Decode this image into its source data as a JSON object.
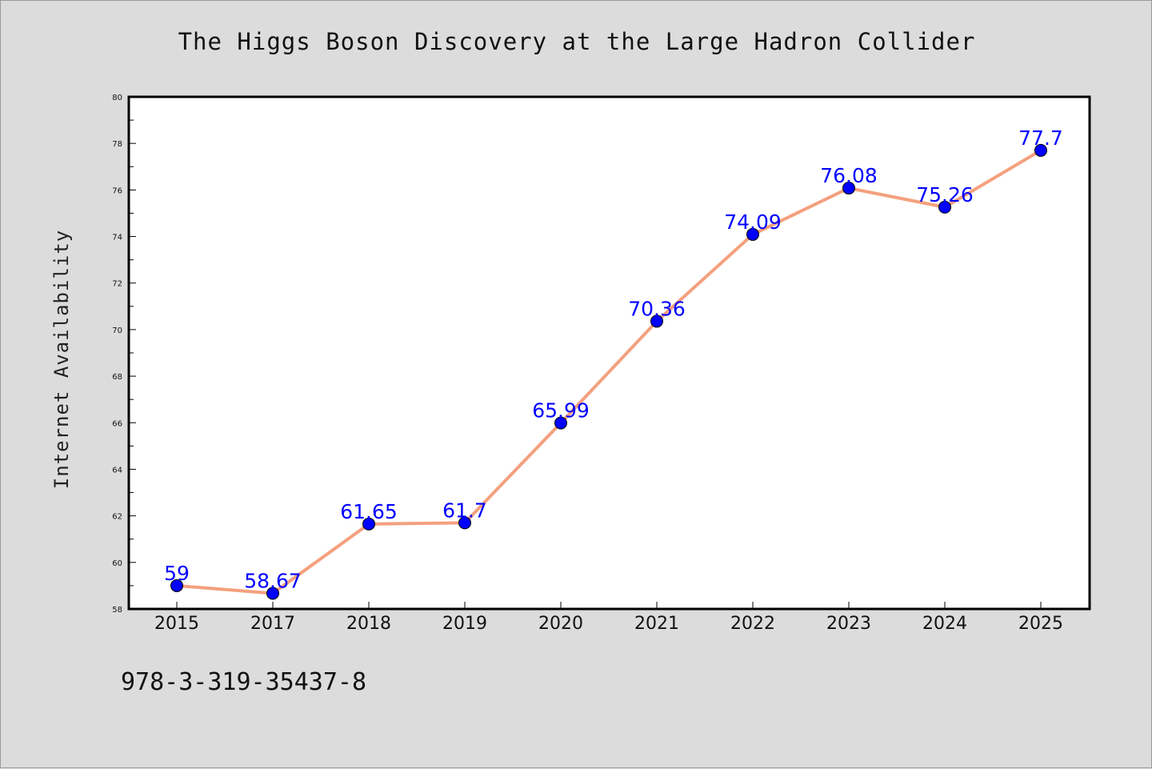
{
  "title": "The Higgs Boson Discovery at the Large Hadron Collider",
  "footer_code": "978-3-319-35437-8",
  "colors": {
    "background": "#dcdcdc",
    "plot_background": "#ffffff",
    "line": "#f4a07e",
    "marker": "#0000ff",
    "data_label": "#0000ff"
  },
  "chart_data": {
    "type": "line",
    "title": "The Higgs Boson Discovery at the Large Hadron Collider",
    "xlabel": "",
    "ylabel": "Internet Availability",
    "categories": [
      "2015",
      "2017",
      "2018",
      "2019",
      "2020",
      "2021",
      "2022",
      "2023",
      "2024",
      "2025"
    ],
    "series": [
      {
        "values": [
          59,
          58.67,
          61.65,
          61.7,
          65.99,
          70.36,
          74.09,
          76.08,
          75.26,
          77.7
        ],
        "labels": [
          "59",
          "58.67",
          "61.65",
          "61.7",
          "65.99",
          "70.36",
          "74.09",
          "76.08",
          "75.26",
          "77.7"
        ]
      }
    ],
    "ylim": [
      58,
      80
    ],
    "yticks": [
      "58",
      "60",
      "62",
      "64",
      "66",
      "68",
      "70",
      "72",
      "74",
      "76",
      "78",
      "80"
    ],
    "grid": false,
    "legend": "none"
  }
}
